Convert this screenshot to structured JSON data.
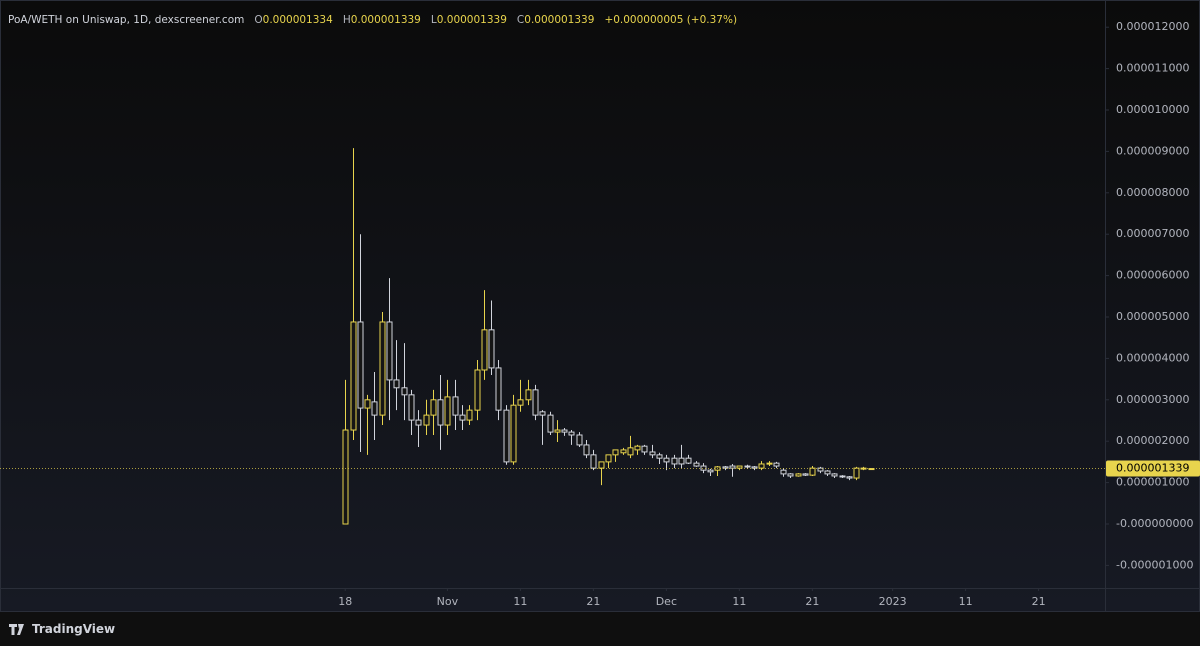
{
  "chart_data": {
    "type": "candlestick",
    "title": "PoA/WETH on Uniswap, 1D, dexscreener.com",
    "ohlc_labels": [
      "O",
      "H",
      "L",
      "C"
    ],
    "change": "+0.000000005 (+0.37%)",
    "up_color": "#e8d44d",
    "down_color": "#d1d4dc",
    "last_price_line": true,
    "open": [
      0,
      2.27e-06,
      4.88e-06,
      2.8e-06,
      2.95e-06,
      2.63e-06,
      4.88e-06,
      3.48e-06,
      3.29e-06,
      3.12e-06,
      2.51e-06,
      2.39e-06,
      2.63e-06,
      3e-06,
      2.39e-06,
      3.07e-06,
      2.63e-06,
      2.51e-06,
      2.75e-06,
      3.72e-06,
      4.69e-06,
      3.77e-06,
      2.75e-06,
      1.5e-06,
      2.87e-06,
      3e-06,
      3.24e-06,
      2.71e-06,
      2.63e-06,
      2.22e-06,
      2.27e-06,
      2.22e-06,
      2.15e-06,
      1.91e-06,
      1.67e-06,
      1.35e-06,
      1.5e-06,
      1.67e-06,
      1.72e-06,
      1.67e-06,
      1.79e-06,
      1.88e-06,
      1.74e-06,
      1.67e-06,
      1.59e-06,
      1.59e-06,
      1.59e-06,
      1.59e-06,
      1.47e-06,
      1.4e-06,
      1.3e-06,
      1.3e-06,
      1.38e-06,
      1.4e-06,
      1.35e-06,
      1.4e-06,
      1.38e-06,
      1.35e-06,
      1.45e-06,
      1.47e-06,
      1.3e-06,
      1.21e-06,
      1.16e-06,
      1.21e-06,
      1.18e-06,
      1.35e-06,
      1.28e-06,
      1.21e-06,
      1.16e-06,
      1.14e-06,
      1.11e-06,
      1.33e-06,
      1.334e-06
    ],
    "high": [
      3.48e-06,
      9.08e-06,
      7e-06,
      3.12e-06,
      3.67e-06,
      5.12e-06,
      5.94e-06,
      4.44e-06,
      4.37e-06,
      3.24e-06,
      2.75e-06,
      3e-06,
      3.24e-06,
      3.6e-06,
      3.48e-06,
      3.48e-06,
      2.87e-06,
      2.87e-06,
      3.96e-06,
      5.65e-06,
      5.4e-06,
      3.96e-06,
      2.87e-06,
      3.12e-06,
      3.48e-06,
      3.48e-06,
      3.36e-06,
      2.75e-06,
      2.71e-06,
      2.51e-06,
      2.32e-06,
      2.27e-06,
      2.22e-06,
      2.03e-06,
      1.79e-06,
      1.5e-06,
      1.67e-06,
      1.79e-06,
      1.84e-06,
      2.13e-06,
      1.91e-06,
      1.91e-06,
      1.91e-06,
      1.72e-06,
      1.67e-06,
      1.67e-06,
      1.91e-06,
      1.67e-06,
      1.52e-06,
      1.47e-06,
      1.33e-06,
      1.4e-06,
      1.4e-06,
      1.45e-06,
      1.4e-06,
      1.43e-06,
      1.4e-06,
      1.52e-06,
      1.52e-06,
      1.5e-06,
      1.35e-06,
      1.23e-06,
      1.23e-06,
      1.23e-06,
      1.4e-06,
      1.38e-06,
      1.3e-06,
      1.23e-06,
      1.18e-06,
      1.16e-06,
      1.38e-06,
      1.38e-06,
      1.339e-06
    ],
    "low": [
      0,
      2.03e-06,
      1.74e-06,
      1.67e-06,
      2.03e-06,
      2.39e-06,
      2.51e-06,
      2.75e-06,
      2.51e-06,
      2.15e-06,
      1.86e-06,
      2.15e-06,
      2.15e-06,
      1.79e-06,
      2.15e-06,
      2.27e-06,
      2.27e-06,
      2.39e-06,
      2.51e-06,
      3.48e-06,
      3.6e-06,
      2.51e-06,
      1.43e-06,
      1.43e-06,
      2.71e-06,
      2.87e-06,
      2.51e-06,
      1.91e-06,
      2.15e-06,
      1.98e-06,
      2.13e-06,
      1.91e-06,
      1.86e-06,
      1.59e-06,
      1.3e-06,
      9.4e-07,
      1.35e-06,
      1.5e-06,
      1.67e-06,
      1.59e-06,
      1.67e-06,
      1.67e-06,
      1.59e-06,
      1.45e-06,
      1.3e-06,
      1.35e-06,
      1.35e-06,
      1.45e-06,
      1.38e-06,
      1.23e-06,
      1.16e-06,
      1.16e-06,
      1.3e-06,
      1.14e-06,
      1.3e-06,
      1.33e-06,
      1.3e-06,
      1.3e-06,
      1.4e-06,
      1.35e-06,
      1.14e-06,
      1.11e-06,
      1.14e-06,
      1.16e-06,
      1.16e-06,
      1.23e-06,
      1.16e-06,
      1.11e-06,
      1.11e-06,
      1.06e-06,
      1.06e-06,
      1.3e-06,
      1.339e-06
    ],
    "close": [
      2.27e-06,
      4.88e-06,
      2.8e-06,
      3e-06,
      2.63e-06,
      4.88e-06,
      3.48e-06,
      3.29e-06,
      3.12e-06,
      2.51e-06,
      2.39e-06,
      2.63e-06,
      3e-06,
      2.39e-06,
      3.07e-06,
      2.63e-06,
      2.51e-06,
      2.75e-06,
      3.72e-06,
      4.69e-06,
      3.77e-06,
      2.75e-06,
      1.5e-06,
      2.87e-06,
      3e-06,
      3.24e-06,
      2.63e-06,
      2.63e-06,
      2.22e-06,
      2.27e-06,
      2.22e-06,
      2.15e-06,
      1.91e-06,
      1.67e-06,
      1.35e-06,
      1.5e-06,
      1.67e-06,
      1.79e-06,
      1.79e-06,
      1.84e-06,
      1.88e-06,
      1.74e-06,
      1.67e-06,
      1.59e-06,
      1.5e-06,
      1.45e-06,
      1.45e-06,
      1.47e-06,
      1.4e-06,
      1.3e-06,
      1.26e-06,
      1.38e-06,
      1.35e-06,
      1.35e-06,
      1.4e-06,
      1.38e-06,
      1.35e-06,
      1.45e-06,
      1.47e-06,
      1.4e-06,
      1.21e-06,
      1.16e-06,
      1.21e-06,
      1.18e-06,
      1.35e-06,
      1.28e-06,
      1.21e-06,
      1.16e-06,
      1.14e-06,
      1.11e-06,
      1.35e-06,
      1.35e-06,
      1.339e-06
    ],
    "ylim": [
      -1.546e-06,
      1.2657e-05
    ],
    "yticks": [
      {
        "value": 1.2e-05,
        "label": "0.000012000"
      },
      {
        "value": 1.1e-05,
        "label": "0.000011000"
      },
      {
        "value": 1e-05,
        "label": "0.000010000"
      },
      {
        "value": 9e-06,
        "label": "0.000009000"
      },
      {
        "value": 8e-06,
        "label": "0.000008000"
      },
      {
        "value": 7e-06,
        "label": "0.000007000"
      },
      {
        "value": 6e-06,
        "label": "0.000006000"
      },
      {
        "value": 5e-06,
        "label": "0.000005000"
      },
      {
        "value": 4e-06,
        "label": "0.000004000"
      },
      {
        "value": 3e-06,
        "label": "0.000003000"
      },
      {
        "value": 2e-06,
        "label": "0.000002000"
      },
      {
        "value": 1e-06,
        "label": "0.000001000"
      },
      {
        "value": 0,
        "label": "-0.000000000"
      },
      {
        "value": -1e-06,
        "label": "-0.000001000"
      }
    ],
    "xlim": [
      -47.3,
      104.1
    ],
    "xticks": [
      {
        "value": 0,
        "label": "18"
      },
      {
        "value": 14,
        "label": "Nov"
      },
      {
        "value": 24,
        "label": "11"
      },
      {
        "value": 34,
        "label": "21"
      },
      {
        "value": 44,
        "label": "Dec"
      },
      {
        "value": 54,
        "label": "11"
      },
      {
        "value": 64,
        "label": "21"
      },
      {
        "value": 75,
        "label": "2023"
      },
      {
        "value": 85,
        "label": "11"
      },
      {
        "value": 95,
        "label": "21"
      }
    ]
  },
  "watermark": "TradingView"
}
